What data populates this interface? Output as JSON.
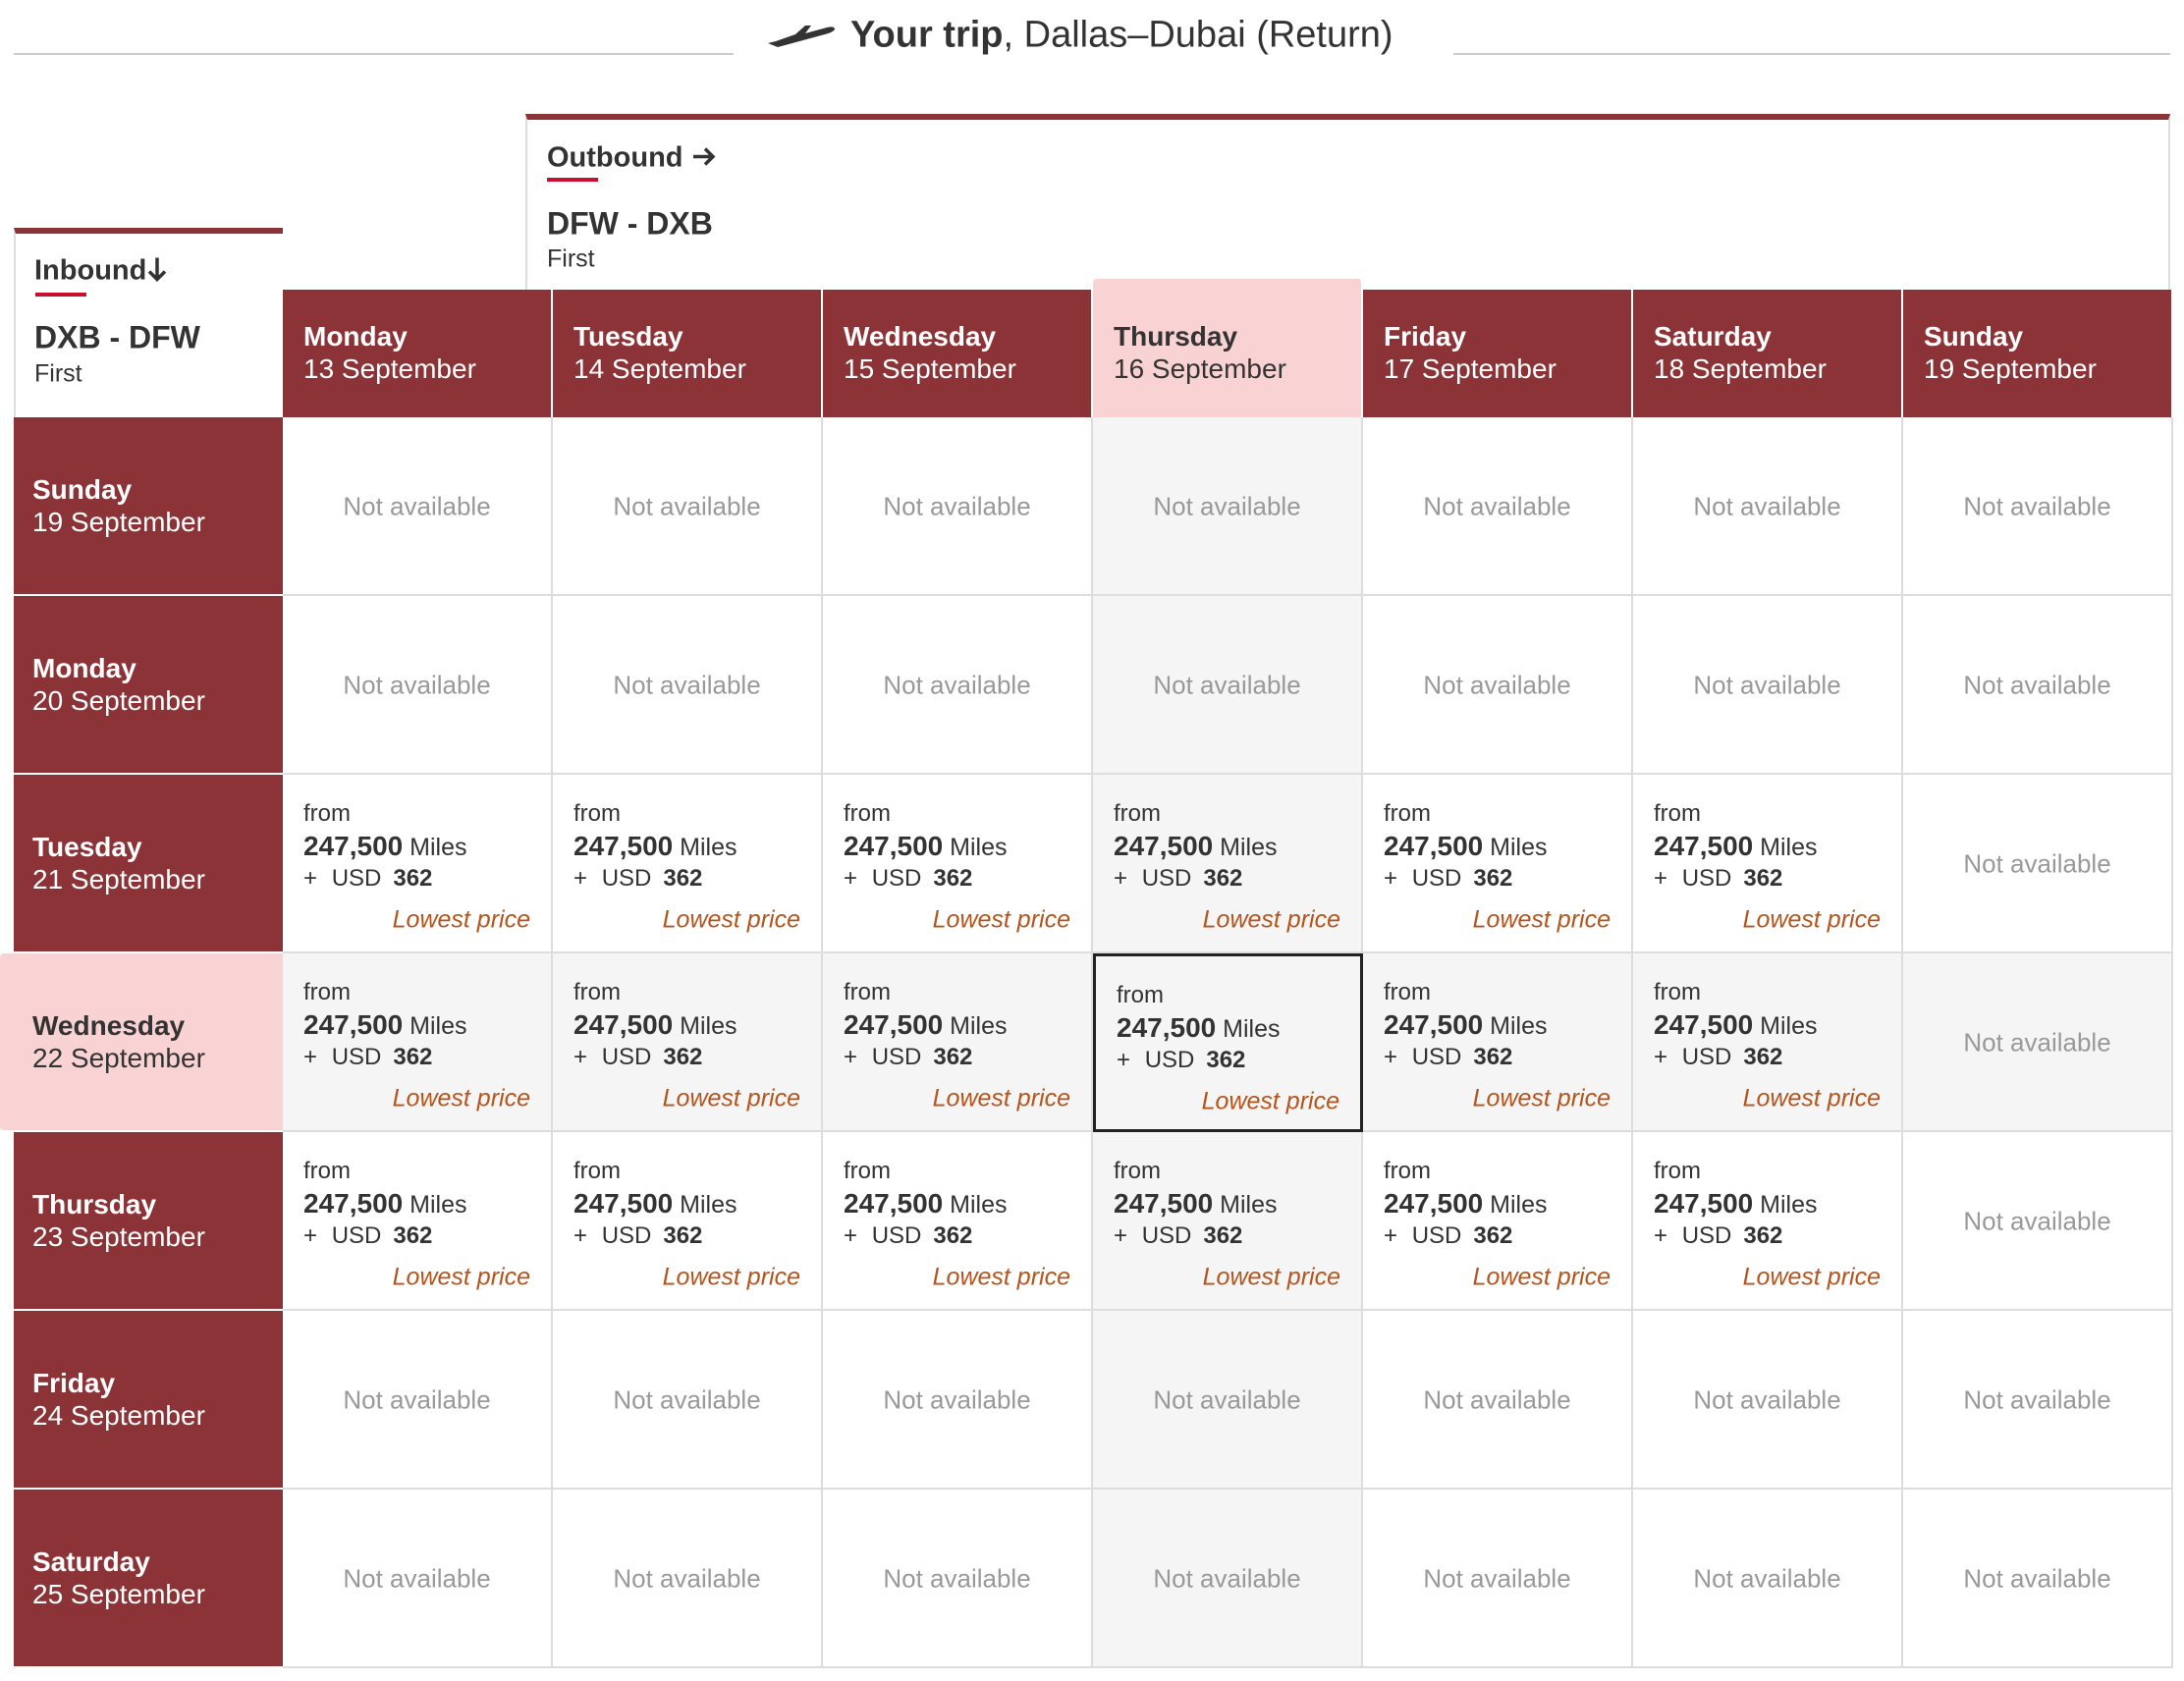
{
  "header": {
    "title_bold": "Your trip",
    "title_rest": ", Dallas–Dubai (Return)"
  },
  "outbound": {
    "label": "Outbound",
    "route": "DFW - DXB",
    "cabin": "First"
  },
  "inbound": {
    "label": "Inbound",
    "route": "DXB - DFW",
    "cabin": "First"
  },
  "columns": [
    {
      "day": "Monday",
      "date": "13 September"
    },
    {
      "day": "Tuesday",
      "date": "14 September"
    },
    {
      "day": "Wednesday",
      "date": "15 September"
    },
    {
      "day": "Thursday",
      "date": "16 September"
    },
    {
      "day": "Friday",
      "date": "17 September"
    },
    {
      "day": "Saturday",
      "date": "18 September"
    },
    {
      "day": "Sunday",
      "date": "19 September"
    }
  ],
  "rows": [
    {
      "day": "Sunday",
      "date": "19 September",
      "cells": [
        "Not available",
        "Not available",
        "Not available",
        "Not available",
        "Not available",
        "Not available",
        "Not available"
      ]
    },
    {
      "day": "Monday",
      "date": "20 September",
      "cells": [
        "Not available",
        "Not available",
        "Not available",
        "Not available",
        "Not available",
        "Not available",
        "Not available"
      ]
    },
    {
      "day": "Tuesday",
      "date": "21 September",
      "cells": [
        {
          "from": "from",
          "miles": "247,500",
          "unit": "Miles",
          "plus": "+",
          "currency": "USD",
          "amount": "362",
          "note": "Lowest price"
        },
        {
          "from": "from",
          "miles": "247,500",
          "unit": "Miles",
          "plus": "+",
          "currency": "USD",
          "amount": "362",
          "note": "Lowest price"
        },
        {
          "from": "from",
          "miles": "247,500",
          "unit": "Miles",
          "plus": "+",
          "currency": "USD",
          "amount": "362",
          "note": "Lowest price"
        },
        {
          "from": "from",
          "miles": "247,500",
          "unit": "Miles",
          "plus": "+",
          "currency": "USD",
          "amount": "362",
          "note": "Lowest price"
        },
        {
          "from": "from",
          "miles": "247,500",
          "unit": "Miles",
          "plus": "+",
          "currency": "USD",
          "amount": "362",
          "note": "Lowest price"
        },
        {
          "from": "from",
          "miles": "247,500",
          "unit": "Miles",
          "plus": "+",
          "currency": "USD",
          "amount": "362",
          "note": "Lowest price"
        },
        "Not available"
      ]
    },
    {
      "day": "Wednesday",
      "date": "22 September",
      "cells": [
        {
          "from": "from",
          "miles": "247,500",
          "unit": "Miles",
          "plus": "+",
          "currency": "USD",
          "amount": "362",
          "note": "Lowest price"
        },
        {
          "from": "from",
          "miles": "247,500",
          "unit": "Miles",
          "plus": "+",
          "currency": "USD",
          "amount": "362",
          "note": "Lowest price"
        },
        {
          "from": "from",
          "miles": "247,500",
          "unit": "Miles",
          "plus": "+",
          "currency": "USD",
          "amount": "362",
          "note": "Lowest price"
        },
        {
          "from": "from",
          "miles": "247,500",
          "unit": "Miles",
          "plus": "+",
          "currency": "USD",
          "amount": "362",
          "note": "Lowest price"
        },
        {
          "from": "from",
          "miles": "247,500",
          "unit": "Miles",
          "plus": "+",
          "currency": "USD",
          "amount": "362",
          "note": "Lowest price"
        },
        {
          "from": "from",
          "miles": "247,500",
          "unit": "Miles",
          "plus": "+",
          "currency": "USD",
          "amount": "362",
          "note": "Lowest price"
        },
        "Not available"
      ]
    },
    {
      "day": "Thursday",
      "date": "23 September",
      "cells": [
        {
          "from": "from",
          "miles": "247,500",
          "unit": "Miles",
          "plus": "+",
          "currency": "USD",
          "amount": "362",
          "note": "Lowest price"
        },
        {
          "from": "from",
          "miles": "247,500",
          "unit": "Miles",
          "plus": "+",
          "currency": "USD",
          "amount": "362",
          "note": "Lowest price"
        },
        {
          "from": "from",
          "miles": "247,500",
          "unit": "Miles",
          "plus": "+",
          "currency": "USD",
          "amount": "362",
          "note": "Lowest price"
        },
        {
          "from": "from",
          "miles": "247,500",
          "unit": "Miles",
          "plus": "+",
          "currency": "USD",
          "amount": "362",
          "note": "Lowest price"
        },
        {
          "from": "from",
          "miles": "247,500",
          "unit": "Miles",
          "plus": "+",
          "currency": "USD",
          "amount": "362",
          "note": "Lowest price"
        },
        {
          "from": "from",
          "miles": "247,500",
          "unit": "Miles",
          "plus": "+",
          "currency": "USD",
          "amount": "362",
          "note": "Lowest price"
        },
        "Not available"
      ]
    },
    {
      "day": "Friday",
      "date": "24 September",
      "cells": [
        "Not available",
        "Not available",
        "Not available",
        "Not available",
        "Not available",
        "Not available",
        "Not available"
      ]
    },
    {
      "day": "Saturday",
      "date": "25 September",
      "cells": [
        "Not available",
        "Not available",
        "Not available",
        "Not available",
        "Not available",
        "Not available",
        "Not available"
      ]
    }
  ]
}
